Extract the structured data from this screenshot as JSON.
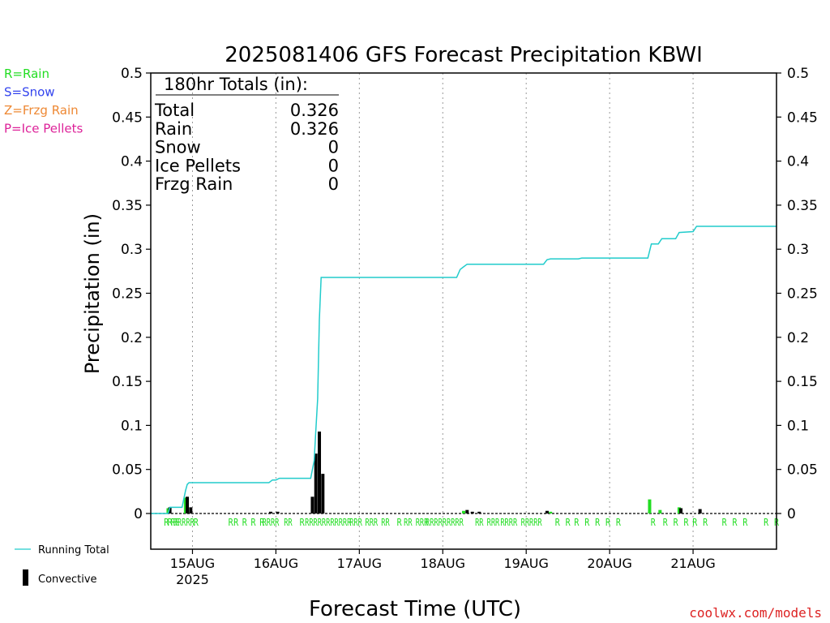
{
  "chart_data": {
    "type": "bar",
    "title": "2025081406 GFS Forecast Precipitation KBWI",
    "ylabel": "Precipitation (in)",
    "xlabel": "Forecast Time (UTC)",
    "ylim": [
      0,
      0.5
    ],
    "y_ticks": [
      "0",
      "0.05",
      "0.1",
      "0.15",
      "0.2",
      "0.25",
      "0.3",
      "0.35",
      "0.4",
      "0.45",
      "0.5"
    ],
    "x_start_hour": 6,
    "x_end_hour": 186,
    "x_ticks": [
      {
        "hour": 18,
        "label": "15AUG",
        "sub": "2025"
      },
      {
        "hour": 42,
        "label": "16AUG",
        "sub": ""
      },
      {
        "hour": 66,
        "label": "17AUG",
        "sub": ""
      },
      {
        "hour": 90,
        "label": "18AUG",
        "sub": ""
      },
      {
        "hour": 114,
        "label": "19AUG",
        "sub": ""
      },
      {
        "hour": 138,
        "label": "20AUG",
        "sub": ""
      },
      {
        "hour": 162,
        "label": "21AUG",
        "sub": ""
      }
    ],
    "legend_top": [
      {
        "text": "R=Rain",
        "color": "#22dd22"
      },
      {
        "text": "S=Snow",
        "color": "#3344ee"
      },
      {
        "text": "Z=Frzg Rain",
        "color": "#ee8833"
      },
      {
        "text": "P=Ice Pellets",
        "color": "#dd2299"
      }
    ],
    "legend_bottom": {
      "running_total": "Running Total",
      "convective": "Convective"
    },
    "totals": {
      "header": "180hr Totals (in):",
      "rows": [
        {
          "label": "Total",
          "value": "0.326"
        },
        {
          "label": "Rain",
          "value": "0.326"
        },
        {
          "label": "Snow",
          "value": "0"
        },
        {
          "label": "Ice Pellets",
          "value": "0"
        },
        {
          "label": "Frzg Rain",
          "value": "0"
        }
      ]
    },
    "credit": "coolwx.com/models",
    "colors": {
      "running_total": "#22cccc",
      "rain_bar": "#22dd22",
      "convective": "#000000",
      "precip_type_letter": "#22dd22"
    },
    "running_total": [
      [
        6,
        0
      ],
      [
        11,
        0
      ],
      [
        11.5,
        0.007
      ],
      [
        15,
        0.007
      ],
      [
        16,
        0.026
      ],
      [
        16.5,
        0.033
      ],
      [
        17,
        0.035
      ],
      [
        40,
        0.035
      ],
      [
        41,
        0.038
      ],
      [
        42,
        0.038
      ],
      [
        43,
        0.04
      ],
      [
        52,
        0.04
      ],
      [
        53,
        0.06
      ],
      [
        53.5,
        0.095
      ],
      [
        54,
        0.13
      ],
      [
        54.5,
        0.22
      ],
      [
        55,
        0.268
      ],
      [
        94,
        0.268
      ],
      [
        95,
        0.277
      ],
      [
        96,
        0.28
      ],
      [
        97,
        0.283
      ],
      [
        119,
        0.283
      ],
      [
        120,
        0.288
      ],
      [
        121,
        0.289
      ],
      [
        129,
        0.289
      ],
      [
        130,
        0.29
      ],
      [
        149,
        0.29
      ],
      [
        150,
        0.306
      ],
      [
        152,
        0.306
      ],
      [
        153,
        0.312
      ],
      [
        157,
        0.312
      ],
      [
        158,
        0.319
      ],
      [
        162,
        0.32
      ],
      [
        163,
        0.326
      ],
      [
        186,
        0.326
      ]
    ],
    "bars": [
      {
        "hour": 11,
        "value": 0.006,
        "type": "rain"
      },
      {
        "hour": 11.5,
        "value": 0.007,
        "type": "convective"
      },
      {
        "hour": 16,
        "value": 0.018,
        "type": "rain"
      },
      {
        "hour": 16.5,
        "value": 0.019,
        "type": "convective"
      },
      {
        "hour": 17.5,
        "value": 0.007,
        "type": "convective"
      },
      {
        "hour": 40.5,
        "value": 0.002,
        "type": "convective"
      },
      {
        "hour": 42.5,
        "value": 0.002,
        "type": "convective"
      },
      {
        "hour": 52.5,
        "value": 0.019,
        "type": "convective"
      },
      {
        "hour": 53.5,
        "value": 0.068,
        "type": "convective"
      },
      {
        "hour": 54.5,
        "value": 0.093,
        "type": "convective"
      },
      {
        "hour": 55.5,
        "value": 0.045,
        "type": "convective"
      },
      {
        "hour": 96,
        "value": 0.003,
        "type": "rain"
      },
      {
        "hour": 97,
        "value": 0.004,
        "type": "convective"
      },
      {
        "hour": 98.5,
        "value": 0.002,
        "type": "convective"
      },
      {
        "hour": 100.5,
        "value": 0.002,
        "type": "convective"
      },
      {
        "hour": 120,
        "value": 0.003,
        "type": "convective"
      },
      {
        "hour": 121,
        "value": 0.002,
        "type": "rain"
      },
      {
        "hour": 149.5,
        "value": 0.016,
        "type": "rain"
      },
      {
        "hour": 152.5,
        "value": 0.004,
        "type": "rain"
      },
      {
        "hour": 158,
        "value": 0.007,
        "type": "rain"
      },
      {
        "hour": 158.5,
        "value": 0.006,
        "type": "convective"
      },
      {
        "hour": 164,
        "value": 0.005,
        "type": "convective"
      }
    ],
    "precip_type_marks": [
      {
        "hour": 10.5,
        "text": "R"
      },
      {
        "hour": 11.5,
        "text": "R"
      },
      {
        "hour": 13,
        "text": "RR"
      },
      {
        "hour": 15.5,
        "text": "RRRRR"
      },
      {
        "hour": 19,
        "text": "R"
      },
      {
        "hour": 29,
        "text": "R"
      },
      {
        "hour": 30.5,
        "text": "R"
      },
      {
        "hour": 33,
        "text": "R"
      },
      {
        "hour": 35.5,
        "text": "R"
      },
      {
        "hour": 38,
        "text": "R"
      },
      {
        "hour": 40.5,
        "text": "RRRR"
      },
      {
        "hour": 45.5,
        "text": "RR"
      },
      {
        "hour": 49.5,
        "text": "R"
      },
      {
        "hour": 57,
        "text": "RRRRRRRRRRR"
      },
      {
        "hour": 65,
        "text": "RRR"
      },
      {
        "hour": 69.5,
        "text": "RRR"
      },
      {
        "hour": 73.5,
        "text": "RR"
      },
      {
        "hour": 77.5,
        "text": "R"
      },
      {
        "hour": 80,
        "text": "RR"
      },
      {
        "hour": 84,
        "text": "RRR"
      },
      {
        "hour": 90.5,
        "text": "RRRRRRRRR"
      },
      {
        "hour": 100.5,
        "text": "RR"
      },
      {
        "hour": 104.5,
        "text": "RRR"
      },
      {
        "hour": 109,
        "text": "RRRR"
      },
      {
        "hour": 115.5,
        "text": "RRRRR"
      },
      {
        "hour": 123,
        "text": "R"
      },
      {
        "hour": 126,
        "text": "R"
      },
      {
        "hour": 128.5,
        "text": "R"
      },
      {
        "hour": 131.5,
        "text": "R"
      },
      {
        "hour": 134.5,
        "text": "R"
      },
      {
        "hour": 137.5,
        "text": "R"
      },
      {
        "hour": 140.5,
        "text": "R"
      },
      {
        "hour": 150.5,
        "text": "R"
      },
      {
        "hour": 154,
        "text": "R"
      },
      {
        "hour": 157,
        "text": "R"
      },
      {
        "hour": 160,
        "text": "R"
      },
      {
        "hour": 162.5,
        "text": "R"
      },
      {
        "hour": 165.5,
        "text": "R"
      },
      {
        "hour": 171,
        "text": "R"
      },
      {
        "hour": 174,
        "text": "R"
      },
      {
        "hour": 177,
        "text": "R"
      },
      {
        "hour": 183,
        "text": "R"
      },
      {
        "hour": 186,
        "text": "R"
      }
    ]
  }
}
